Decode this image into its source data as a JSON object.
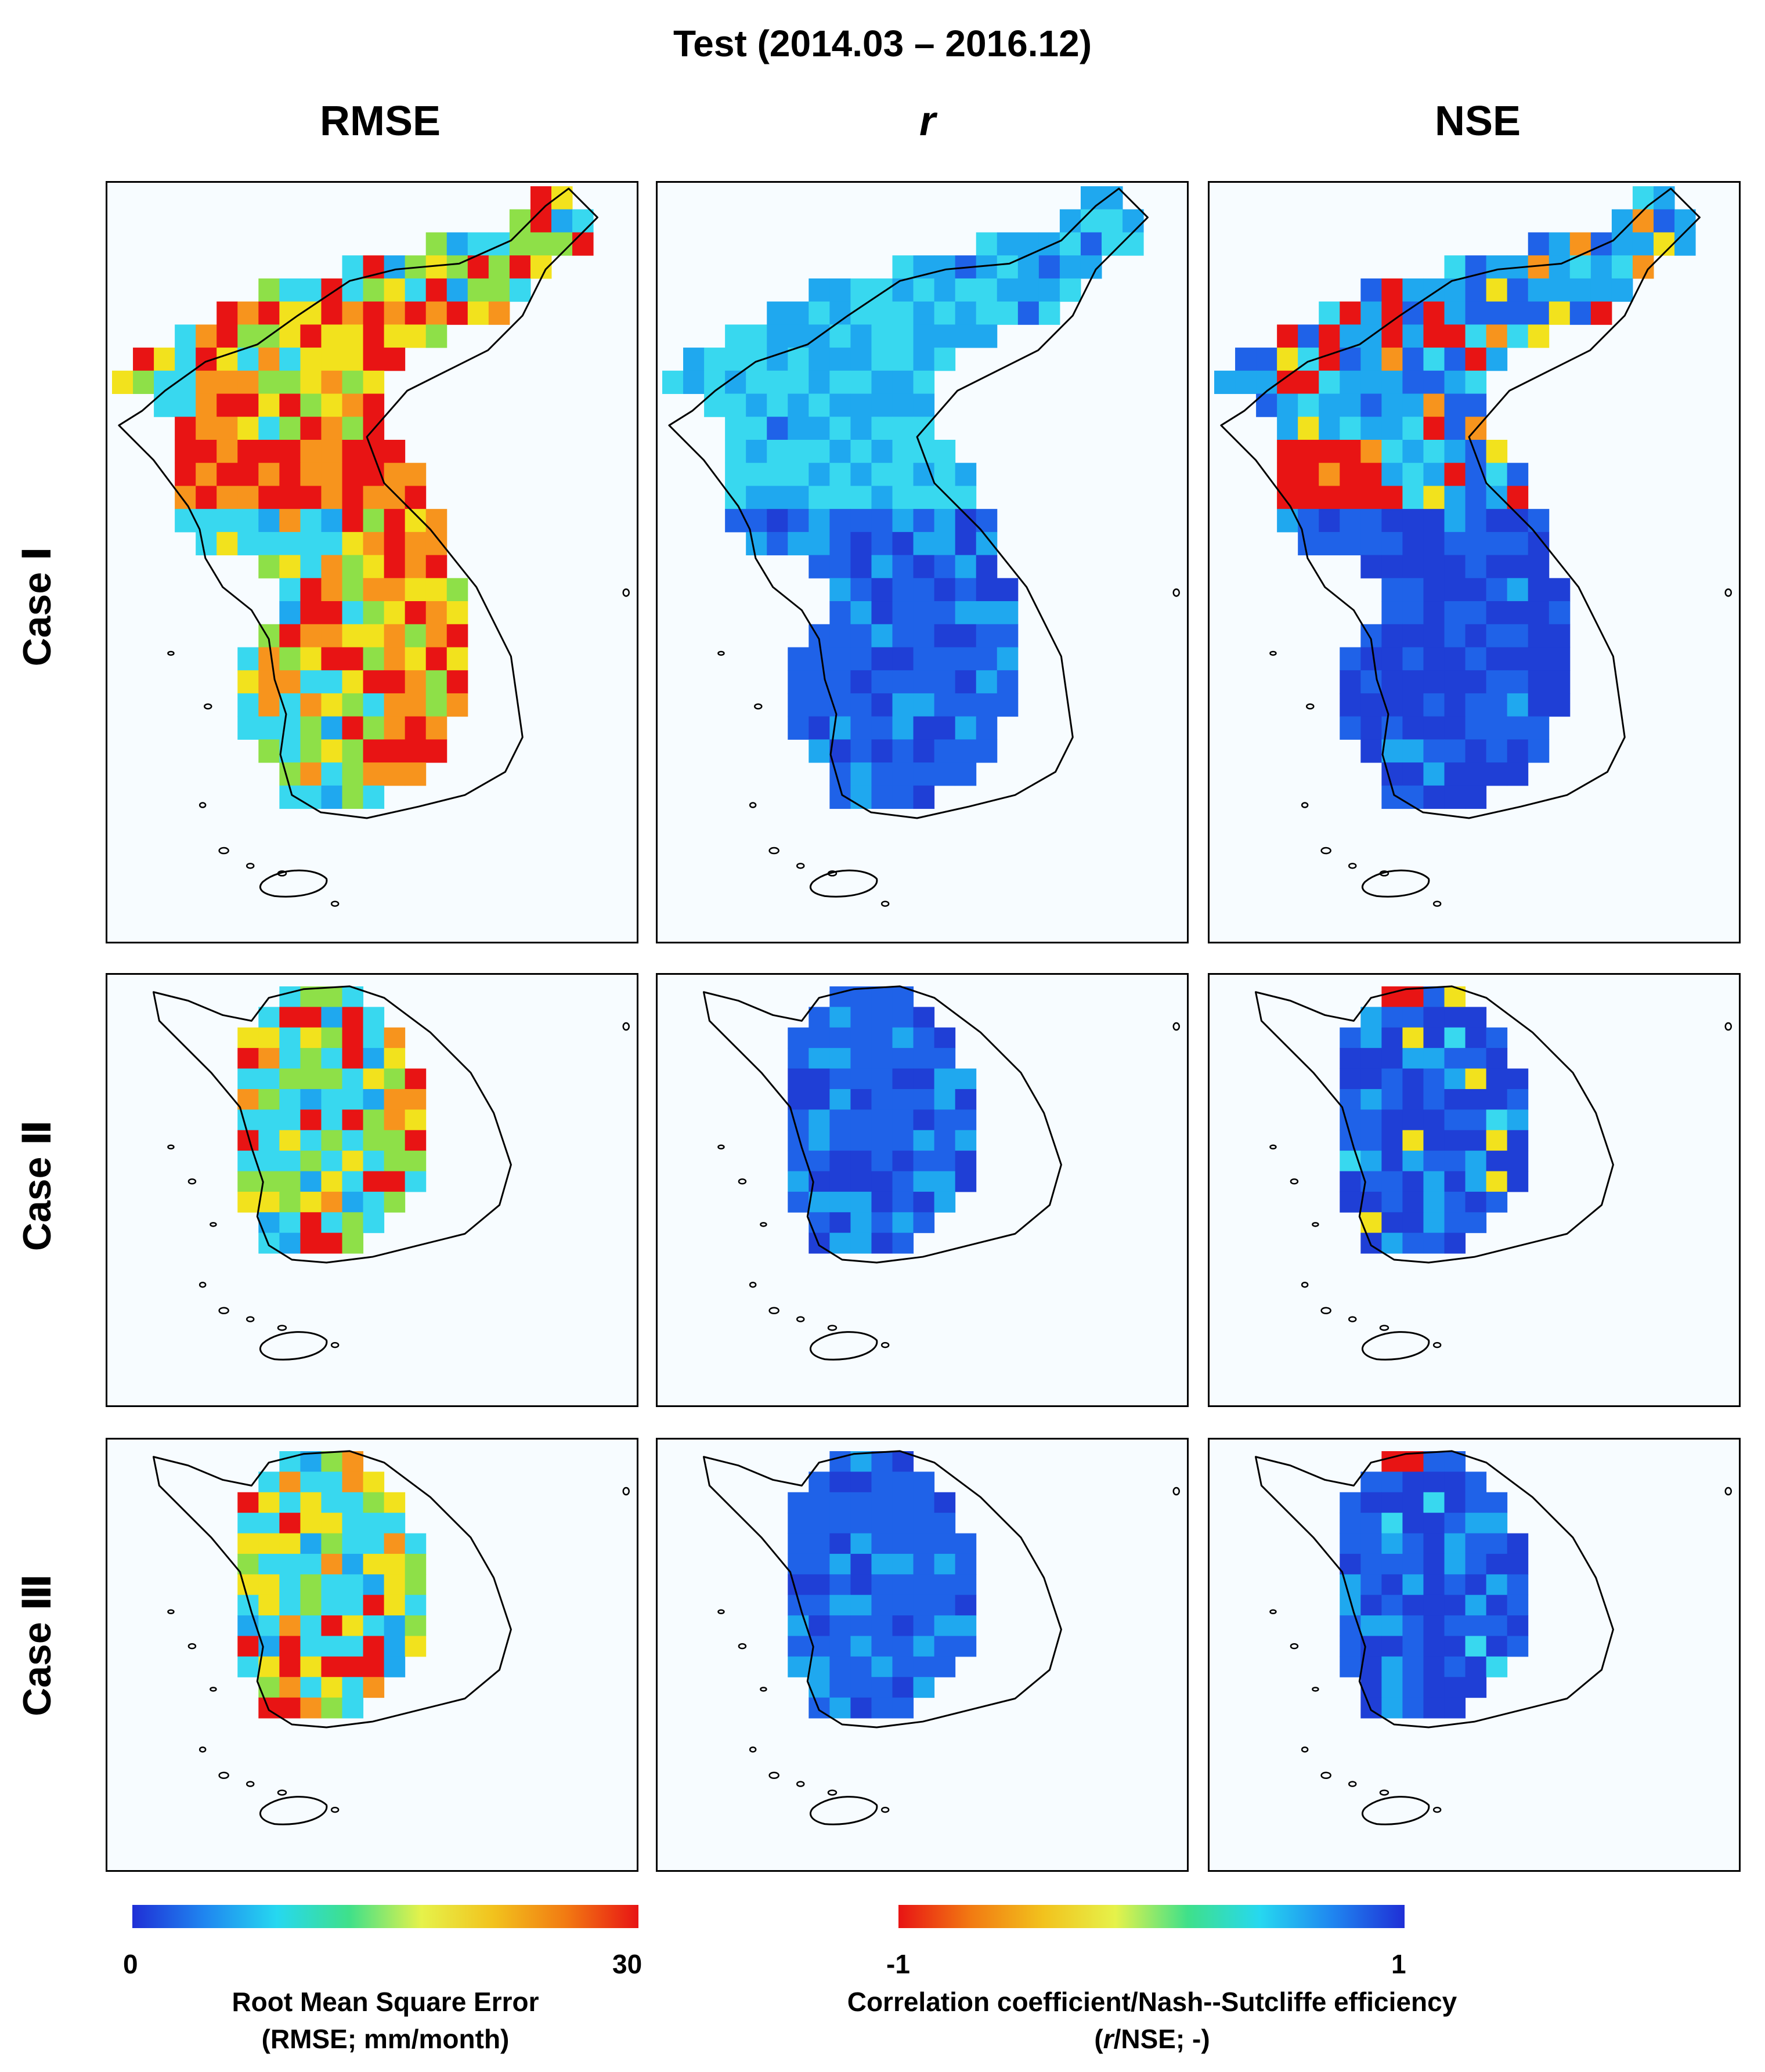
{
  "title": "Test (2014.03 – 2016.12)",
  "columns": [
    {
      "label": "RMSE",
      "italic": false
    },
    {
      "label": "r",
      "italic": true
    },
    {
      "label": "NSE",
      "italic": false
    }
  ],
  "rows": [
    {
      "label": "Case Ⅰ"
    },
    {
      "label": "Case Ⅱ"
    },
    {
      "label": "Case Ⅲ"
    }
  ],
  "colorbars": {
    "rmse": {
      "min_label": "0",
      "max_label": "30",
      "label_line1": "Root Mean Square Error",
      "label_line2": "(RMSE; mm/month)",
      "colors": [
        "#1f2fd6",
        "#1f86f0",
        "#26d8f0",
        "#3fe08a",
        "#e6f24a",
        "#f2c21d",
        "#f27a12",
        "#e81414"
      ]
    },
    "r_nse": {
      "min_label": "-1",
      "max_label": "1",
      "label_line1": "Correlation coefficient/Nash--Sutcliffe efficiency",
      "label_line2_italic": "r",
      "label_line2_rest": "/NSE; -)",
      "colors": [
        "#e81414",
        "#f27a12",
        "#f2c21d",
        "#e6f24a",
        "#3fe08a",
        "#26d8f0",
        "#1f86f0",
        "#1f2fd6"
      ]
    }
  },
  "map_colors": {
    "red": "#e81414",
    "orange": "#f7941d",
    "yellow": "#f2e21d",
    "green": "#8ee048",
    "cyan": "#38d8ef",
    "lightblue": "#1fa8ef",
    "blue": "#1f62e8",
    "darkblue": "#1f3fd6",
    "background": "#f7fcff",
    "coast": "#000000"
  },
  "panels": [
    {
      "row": 0,
      "col": 0,
      "region": "peninsula",
      "palette": "rmse_high"
    },
    {
      "row": 0,
      "col": 1,
      "region": "peninsula",
      "palette": "r_case1"
    },
    {
      "row": 0,
      "col": 2,
      "region": "peninsula",
      "palette": "nse_case1"
    },
    {
      "row": 1,
      "col": 0,
      "region": "south",
      "palette": "rmse_mixed"
    },
    {
      "row": 1,
      "col": 1,
      "region": "south",
      "palette": "r_south"
    },
    {
      "row": 1,
      "col": 2,
      "region": "south",
      "palette": "nse_south"
    },
    {
      "row": 2,
      "col": 0,
      "region": "south",
      "palette": "rmse_mixed3"
    },
    {
      "row": 2,
      "col": 1,
      "region": "south",
      "palette": "r_south"
    },
    {
      "row": 2,
      "col": 2,
      "region": "south",
      "palette": "nse_south3"
    }
  ]
}
